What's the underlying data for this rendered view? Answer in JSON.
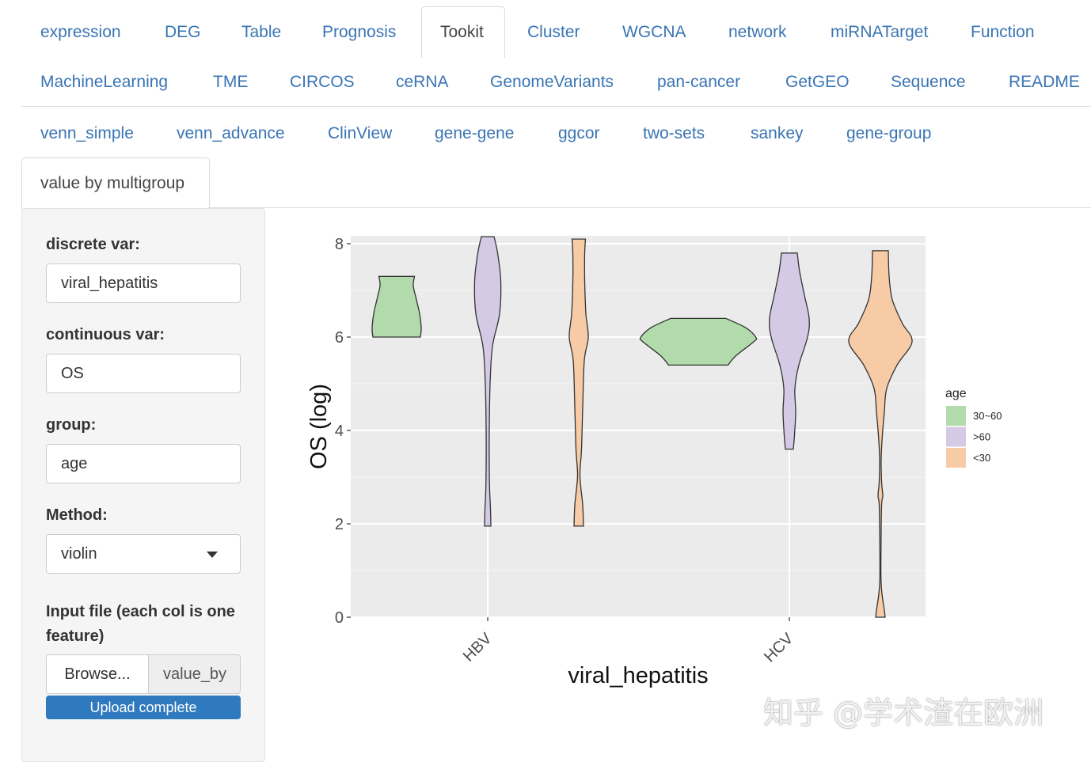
{
  "tabs_row1": [
    "expression",
    "DEG",
    "Table",
    "Prognosis",
    "Tookit",
    "Cluster",
    "WGCNA",
    "network",
    "miRNATarget",
    "Function"
  ],
  "tabs_row2": [
    "MachineLearning",
    "TME",
    "CIRCOS",
    "ceRNA",
    "GenomeVariants",
    "pan-cancer",
    "GetGEO",
    "Sequence",
    "README"
  ],
  "subtabs_row1": [
    "venn_simple",
    "venn_advance",
    "ClinView",
    "gene-gene",
    "ggcor",
    "two-sets",
    "sankey",
    "gene-group"
  ],
  "subtabs_row2": [
    "value by multigroup"
  ],
  "active_tab": "Tookit",
  "active_subtab": "value by multigroup",
  "sidebar": {
    "discrete_label": "discrete var:",
    "discrete_value": "viral_hepatitis",
    "continuous_label": "continuous var:",
    "continuous_value": "OS",
    "group_label": "group:",
    "group_value": "age",
    "method_label": "Method:",
    "method_value": "violin",
    "file_label": "Input file (each col is one feature)",
    "browse_label": "Browse...",
    "file_name": "value_by",
    "upload_status": "Upload complete",
    "upload_progress": 1.0
  },
  "chart_data": {
    "type": "violin",
    "xlabel": "viral_hepatitis",
    "ylabel": "OS (log)",
    "categories": [
      "HBV",
      "HCV"
    ],
    "ylim": [
      0,
      8.1
    ],
    "yticks": [
      0,
      2,
      4,
      6,
      8
    ],
    "grid": true,
    "legend": {
      "title": "age",
      "position": "right",
      "entries": [
        {
          "name": "30~60",
          "color": "#b1dbab"
        },
        {
          "name": ">60",
          "color": "#d5cae6"
        },
        {
          "name": "<30",
          "color": "#f7cba6"
        }
      ]
    },
    "series": [
      {
        "name": "30~60",
        "category": "HBV",
        "min": 6.0,
        "max": 7.3,
        "profile": [
          [
            6.0,
            0.6
          ],
          [
            6.2,
            0.62
          ],
          [
            6.5,
            0.58
          ],
          [
            6.8,
            0.5
          ],
          [
            7.1,
            0.42
          ],
          [
            7.3,
            0.45
          ]
        ]
      },
      {
        "name": ">60",
        "category": "HBV",
        "min": 1.95,
        "max": 8.15,
        "profile": [
          [
            1.95,
            0.08
          ],
          [
            2.3,
            0.07
          ],
          [
            2.7,
            0.05
          ],
          [
            3.2,
            0.04
          ],
          [
            4.0,
            0.04
          ],
          [
            5.0,
            0.06
          ],
          [
            5.8,
            0.12
          ],
          [
            6.5,
            0.3
          ],
          [
            7.2,
            0.33
          ],
          [
            7.8,
            0.25
          ],
          [
            8.15,
            0.16
          ]
        ]
      },
      {
        "name": "<30",
        "category": "HBV",
        "min": 1.95,
        "max": 8.1,
        "profile": [
          [
            1.95,
            0.12
          ],
          [
            2.4,
            0.1
          ],
          [
            2.8,
            0.05
          ],
          [
            3.1,
            0.03
          ],
          [
            3.6,
            0.07
          ],
          [
            4.5,
            0.1
          ],
          [
            5.5,
            0.14
          ],
          [
            6.0,
            0.24
          ],
          [
            6.5,
            0.18
          ],
          [
            7.2,
            0.15
          ],
          [
            7.8,
            0.15
          ],
          [
            8.1,
            0.17
          ]
        ]
      },
      {
        "name": "30~60",
        "category": "HCV",
        "min": 5.4,
        "max": 6.4,
        "profile": [
          [
            5.4,
            0.75
          ],
          [
            5.6,
            0.95
          ],
          [
            5.9,
            1.4
          ],
          [
            6.0,
            1.45
          ],
          [
            6.2,
            1.2
          ],
          [
            6.4,
            0.7
          ]
        ]
      },
      {
        "name": ">60",
        "category": "HCV",
        "min": 3.6,
        "max": 7.8,
        "profile": [
          [
            3.6,
            0.1
          ],
          [
            3.9,
            0.13
          ],
          [
            4.4,
            0.16
          ],
          [
            4.9,
            0.14
          ],
          [
            5.4,
            0.24
          ],
          [
            6.0,
            0.46
          ],
          [
            6.4,
            0.5
          ],
          [
            6.9,
            0.38
          ],
          [
            7.4,
            0.26
          ],
          [
            7.8,
            0.2
          ]
        ]
      },
      {
        "name": "<30",
        "category": "HCV",
        "min": 0.0,
        "max": 7.85,
        "profile": [
          [
            0.0,
            0.12
          ],
          [
            0.2,
            0.09
          ],
          [
            0.5,
            0.04
          ],
          [
            0.8,
            0.015
          ],
          [
            1.5,
            0.015
          ],
          [
            2.4,
            0.03
          ],
          [
            2.6,
            0.06
          ],
          [
            2.9,
            0.03
          ],
          [
            3.4,
            0.02
          ],
          [
            3.9,
            0.05
          ],
          [
            4.4,
            0.1
          ],
          [
            4.9,
            0.16
          ],
          [
            5.4,
            0.42
          ],
          [
            5.9,
            0.8
          ],
          [
            6.3,
            0.55
          ],
          [
            6.8,
            0.3
          ],
          [
            7.3,
            0.22
          ],
          [
            7.85,
            0.2
          ]
        ]
      }
    ]
  },
  "watermark": "知乎 @学术渣在欧洲"
}
